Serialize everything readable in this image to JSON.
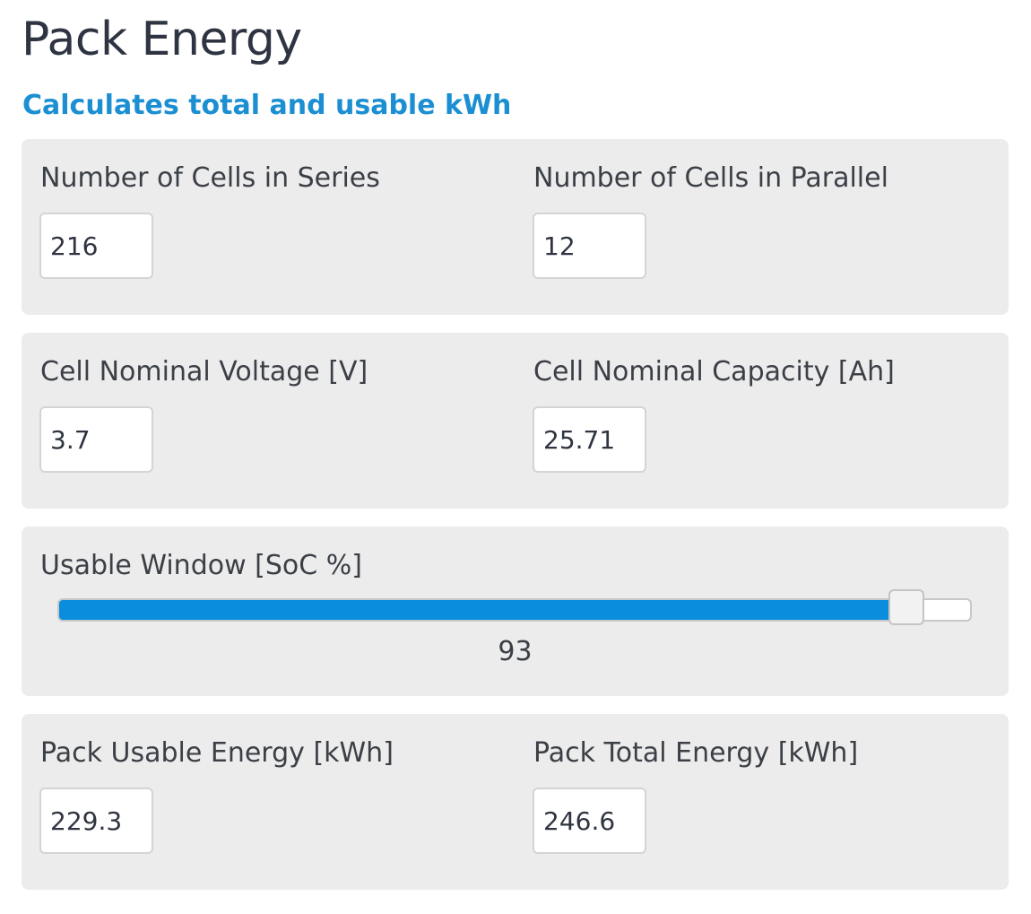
{
  "header": {
    "title": "Pack Energy",
    "subtitle": "Calculates total and usable kWh"
  },
  "cells": {
    "series_label": "Number of Cells in Series",
    "series_value": "216",
    "parallel_label": "Number of Cells in Parallel",
    "parallel_value": "12"
  },
  "cell_specs": {
    "voltage_label": "Cell Nominal Voltage [V]",
    "voltage_value": "3.7",
    "capacity_label": "Cell Nominal Capacity [Ah]",
    "capacity_value": "25.71"
  },
  "usable_window": {
    "label": "Usable Window [SoC %]",
    "value": 93,
    "min": 0,
    "max": 100,
    "value_text": "93"
  },
  "results": {
    "usable_label": "Pack Usable Energy [kWh]",
    "usable_value": "229.3",
    "total_label": "Pack Total Energy [kWh]",
    "total_value": "246.6"
  },
  "colors": {
    "accent": "#0a8ddc",
    "subtitle": "#1b8fd2",
    "panel": "#ececec"
  }
}
